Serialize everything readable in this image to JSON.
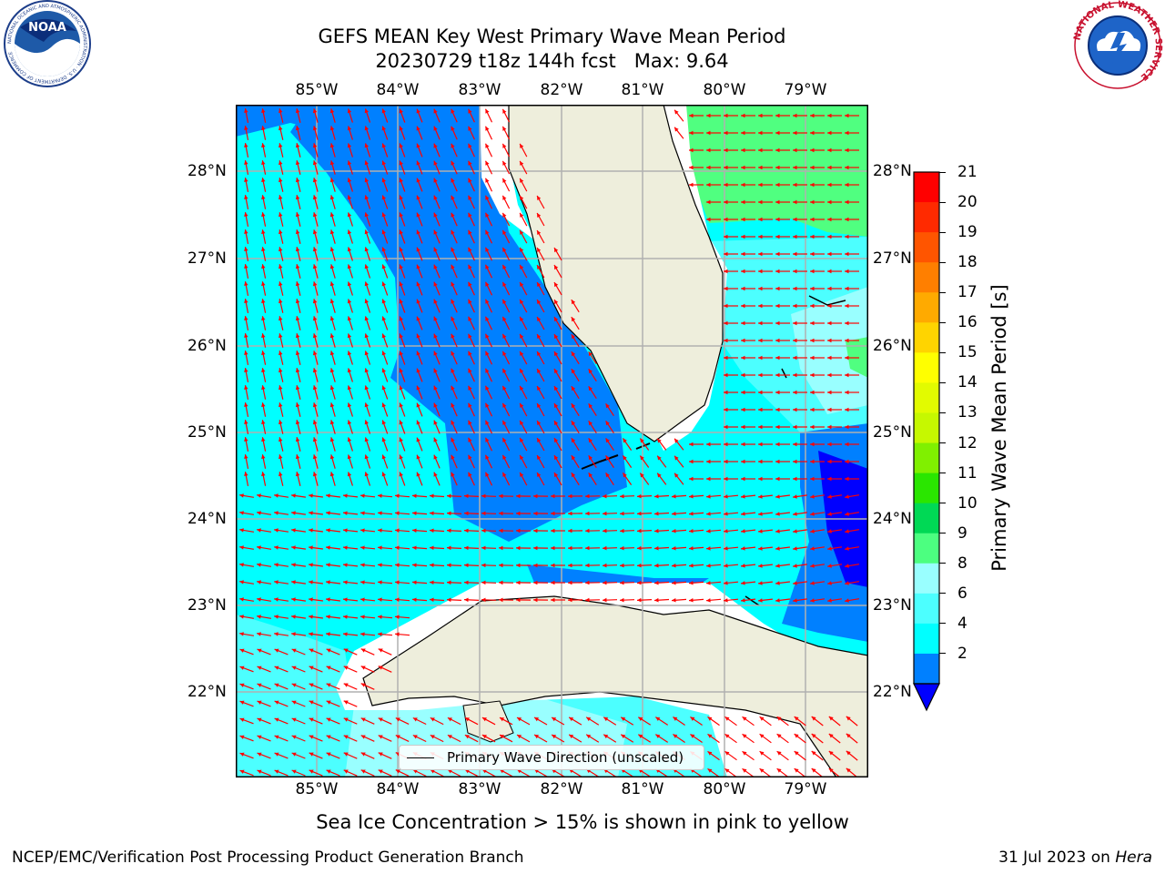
{
  "title": {
    "line1": "GEFS MEAN Key West Primary Wave Mean Period",
    "line2": "20230729 t18z 144h fcst   Max: 9.64"
  },
  "logos": {
    "noaa": {
      "icon": "noaa-logo-icon",
      "text": "NOAA",
      "ring_text": "NATIONAL OCEANIC AND ATMOSPHERIC ADMINISTRATION · U.S. DEPARTMENT OF COMMERCE"
    },
    "nws": {
      "icon": "nws-logo-icon",
      "ring_text": "NATIONAL WEATHER SERVICE"
    }
  },
  "map": {
    "lon_labels": [
      "85°W",
      "84°W",
      "83°W",
      "82°W",
      "81°W",
      "80°W",
      "79°W"
    ],
    "lat_labels": [
      "28°N",
      "27°N",
      "26°N",
      "25°N",
      "24°N",
      "23°N",
      "22°N"
    ],
    "legend_label": "Primary Wave Direction (unscaled)",
    "colors": {
      "land": "#eeeedc",
      "arrows": "#ff0000",
      "period_2_4": "#0080ff",
      "period_4_6": "#00ffff",
      "period_6_8": "#4cffff",
      "period_8_9": "#99ffff",
      "period_9_10": "#50ff80",
      "period_lt_2": "#0000ff"
    }
  },
  "colorbar": {
    "title": "Primary Wave Mean Period [s]",
    "ticks": [
      "21",
      "20",
      "19",
      "18",
      "17",
      "16",
      "15",
      "14",
      "13",
      "12",
      "11",
      "10",
      "9",
      "8",
      "6",
      "4",
      "2"
    ],
    "colors": [
      "#ff0000",
      "#ff2a00",
      "#ff5500",
      "#ff7f00",
      "#ffaa00",
      "#ffd400",
      "#ffff00",
      "#e2fb00",
      "#c6f800",
      "#80f000",
      "#2ae600",
      "#00d955",
      "#4cff80",
      "#99ffff",
      "#4cffff",
      "#00ffff",
      "#0080ff"
    ],
    "under_color": "#0000ff"
  },
  "subtitle": "Sea Ice Concentration > 15% is shown in pink to yellow",
  "footer": {
    "left": "NCEP/EMC/Verification Post Processing Product Generation Branch",
    "date": "31 Jul 2023 on ",
    "machine": "Hera"
  }
}
